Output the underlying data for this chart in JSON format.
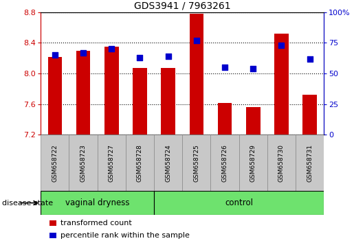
{
  "title": "GDS3941 / 7963261",
  "samples": [
    "GSM658722",
    "GSM658723",
    "GSM658727",
    "GSM658728",
    "GSM658724",
    "GSM658725",
    "GSM658726",
    "GSM658729",
    "GSM658730",
    "GSM658731"
  ],
  "red_values": [
    8.22,
    8.3,
    8.35,
    8.07,
    8.07,
    8.78,
    7.62,
    7.56,
    8.52,
    7.72
  ],
  "blue_values": [
    65,
    67,
    70,
    63,
    64,
    77,
    55,
    54,
    73,
    62
  ],
  "ylim_left": [
    7.2,
    8.8
  ],
  "ylim_right": [
    0,
    100
  ],
  "yticks_left": [
    7.2,
    7.6,
    8.0,
    8.4,
    8.8
  ],
  "yticks_right": [
    0,
    25,
    50,
    75,
    100
  ],
  "groups": [
    {
      "label": "vaginal dryness",
      "start": 0,
      "end": 4
    },
    {
      "label": "control",
      "start": 4,
      "end": 10
    }
  ],
  "green_color": "#6EE26E",
  "disease_state_label": "disease state",
  "bar_color": "#CC0000",
  "dot_color": "#0000CC",
  "legend_items": [
    {
      "label": "transformed count",
      "color": "#CC0000"
    },
    {
      "label": "percentile rank within the sample",
      "color": "#0000CC"
    }
  ],
  "tick_label_color_left": "#CC0000",
  "tick_label_color_right": "#0000CC",
  "bar_width": 0.5,
  "dot_size": 28,
  "sample_label_bg": "#C8C8C8",
  "sample_label_border": "#888888"
}
